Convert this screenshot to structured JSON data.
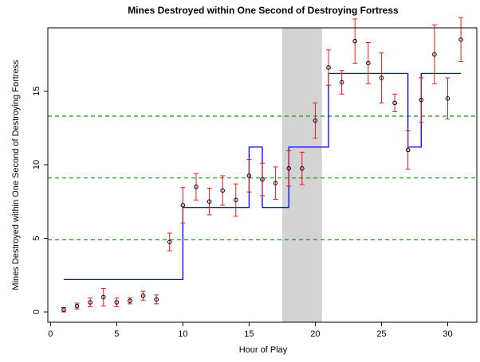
{
  "chart_data": {
    "type": "scatter",
    "title": "Mines Destroyed within One Second of Destroying Fortress",
    "x_label": "Hour of Play",
    "y_label": "Mines Destroyed within One Second of Destroying Fortress",
    "x": [
      1,
      2,
      3,
      4,
      5,
      6,
      7,
      8,
      9,
      10,
      11,
      12,
      13,
      14,
      15,
      16,
      17,
      18,
      19,
      20,
      21,
      22,
      23,
      24,
      25,
      26,
      27,
      28,
      29,
      30,
      31
    ],
    "values": [
      0.15,
      0.4,
      0.65,
      1.0,
      0.65,
      0.75,
      1.1,
      0.85,
      4.75,
      7.25,
      8.5,
      7.5,
      8.25,
      7.6,
      9.25,
      9.0,
      8.75,
      9.75,
      9.75,
      13.0,
      16.6,
      15.6,
      18.4,
      16.9,
      15.9,
      14.2,
      11.0,
      14.4,
      17.5,
      14.5,
      18.5
    ],
    "errors": [
      0.15,
      0.2,
      0.3,
      0.6,
      0.3,
      0.2,
      0.3,
      0.3,
      0.6,
      1.2,
      0.9,
      0.9,
      1.0,
      1.1,
      1.1,
      1.1,
      1.1,
      1.2,
      1.1,
      1.2,
      1.2,
      0.8,
      1.5,
      1.4,
      1.7,
      0.6,
      1.3,
      1.5,
      2.0,
      1.4,
      1.5
    ],
    "point_color": "#000000",
    "error_color": "#e41a1c",
    "step_line": {
      "color": "#0000ff",
      "x": [
        1,
        10,
        10,
        15,
        15,
        16,
        16,
        18,
        18,
        21,
        21,
        27,
        27,
        28,
        28,
        31
      ],
      "values": [
        2.2,
        2.2,
        7.1,
        7.1,
        11.2,
        11.2,
        7.1,
        7.1,
        11.2,
        11.2,
        16.2,
        16.2,
        11.2,
        11.2,
        16.2,
        16.2
      ]
    },
    "hlines": {
      "color": "#119911",
      "values": [
        4.9,
        9.1,
        13.3
      ]
    },
    "shaded_region": {
      "color": "#d3d3d3",
      "x": [
        17.5,
        20.5
      ]
    },
    "xlim": [
      -0.2,
      32.2
    ],
    "ylim": [
      -0.7,
      19.3
    ],
    "xticks": [
      0,
      5,
      10,
      15,
      20,
      25,
      30
    ],
    "yticks": [
      0,
      5,
      10,
      15
    ]
  }
}
